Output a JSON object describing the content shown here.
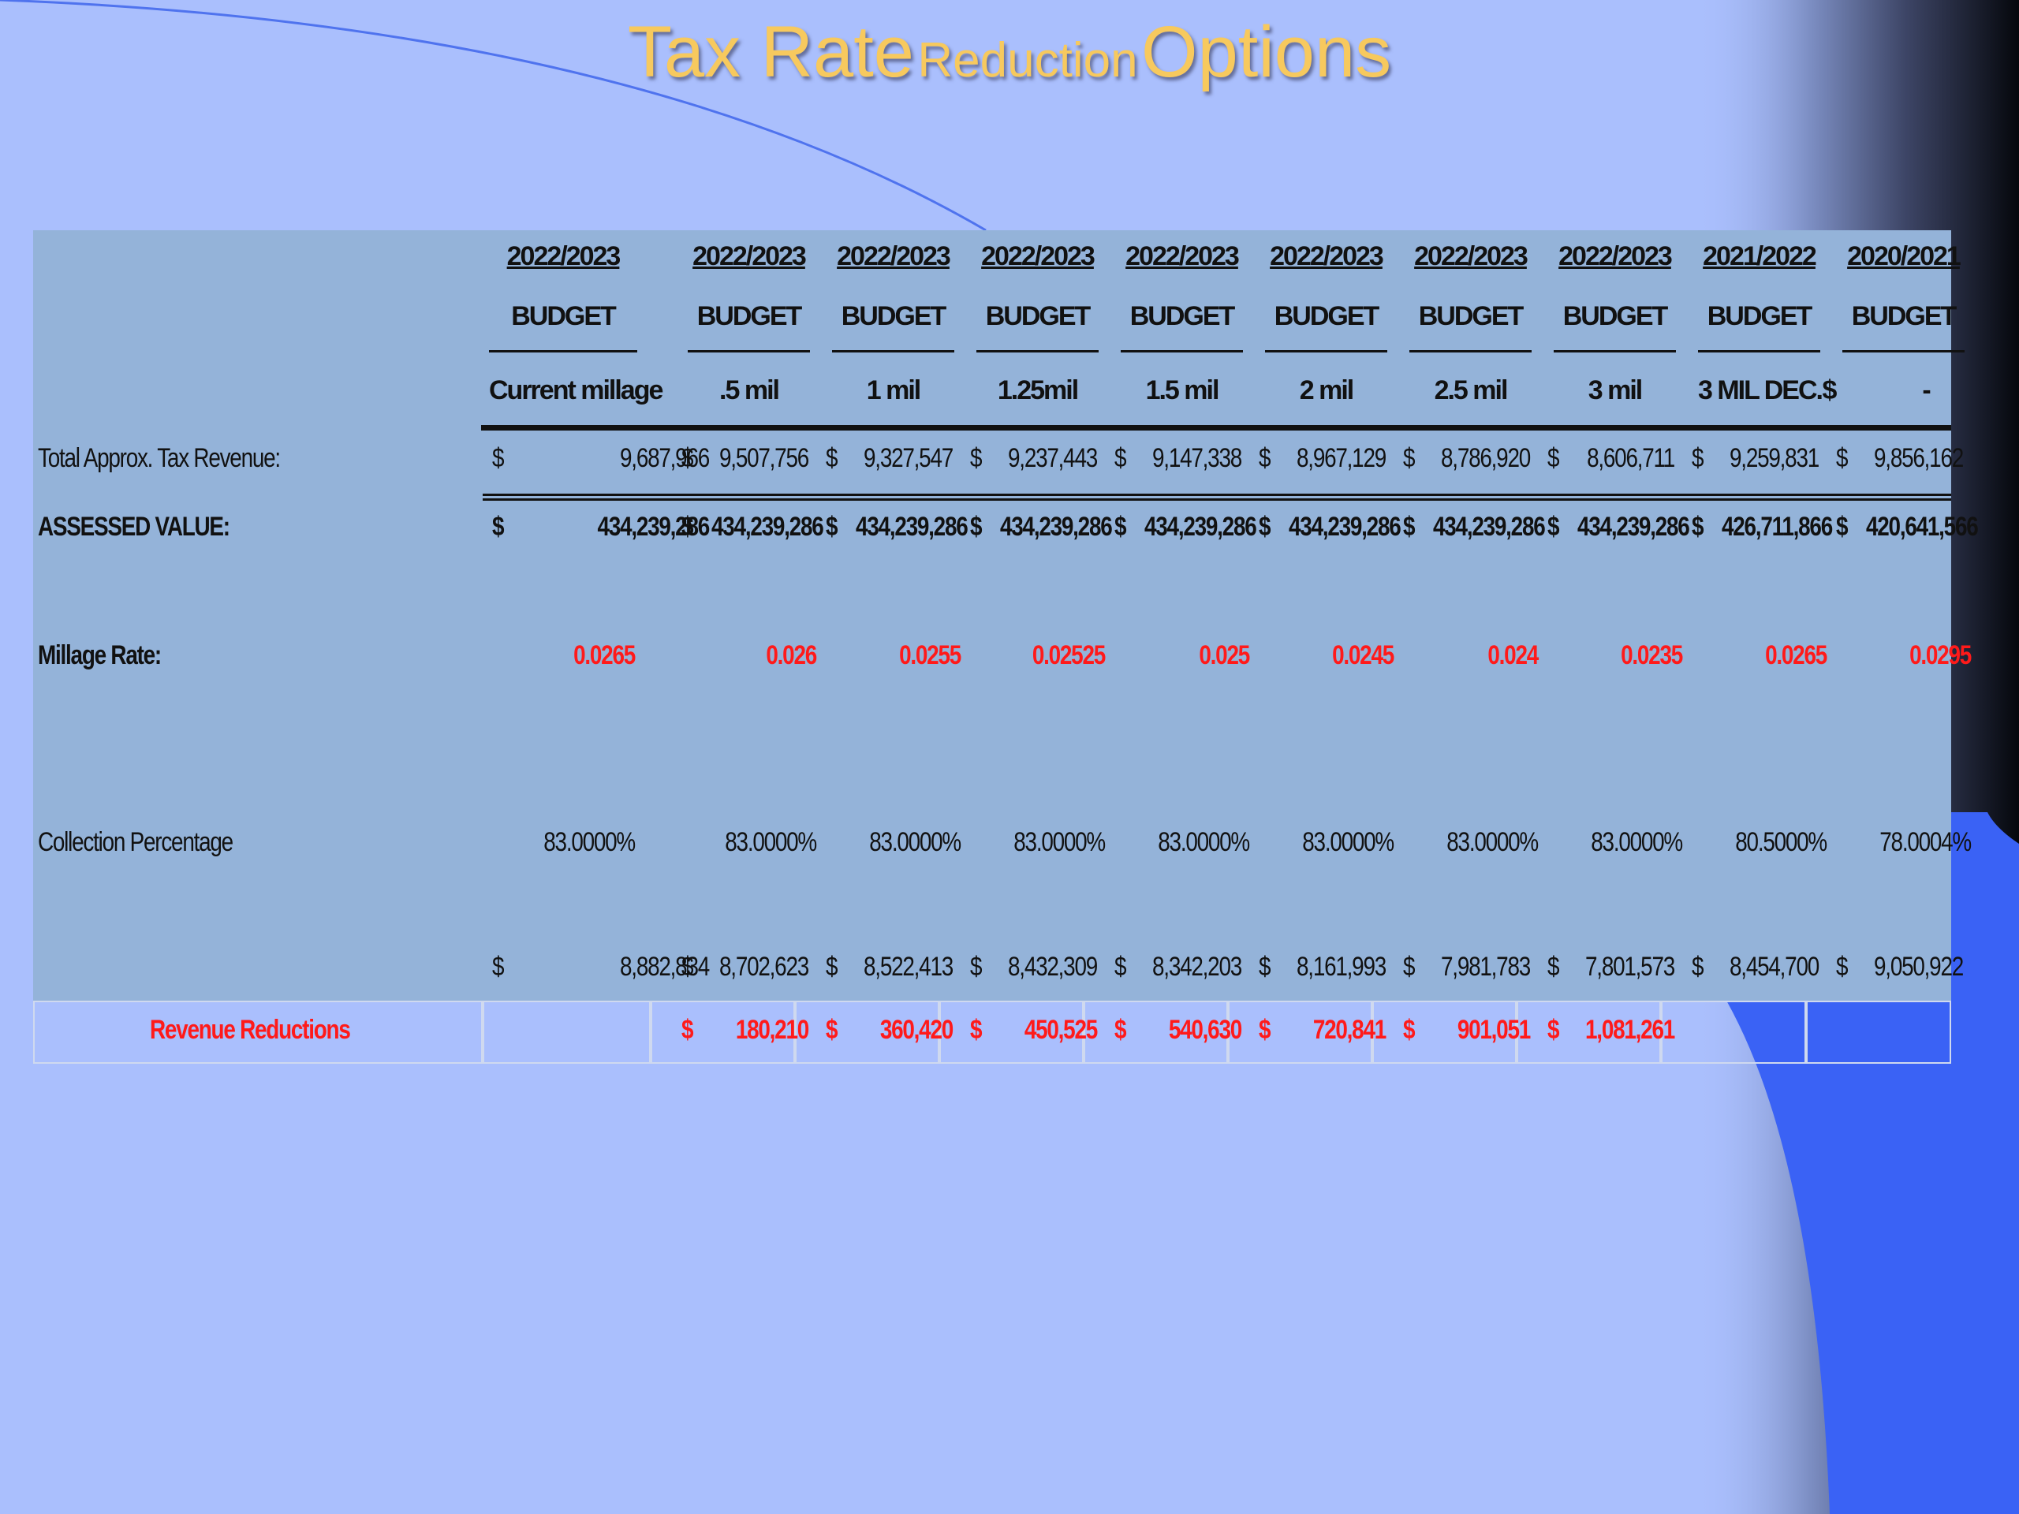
{
  "title": {
    "part1": "Tax Rate",
    "part2": "Reduction",
    "part3": "Options"
  },
  "columns": [
    {
      "year": "2022/2023",
      "type": "BUDGET",
      "option": "Current millage"
    },
    {
      "year": "2022/2023",
      "type": "BUDGET",
      "option": ".5 mil"
    },
    {
      "year": "2022/2023",
      "type": "BUDGET",
      "option": "1 mil"
    },
    {
      "year": "2022/2023",
      "type": "BUDGET",
      "option": "1.25mil"
    },
    {
      "year": "2022/2023",
      "type": "BUDGET",
      "option": "1.5 mil"
    },
    {
      "year": "2022/2023",
      "type": "BUDGET",
      "option": "2 mil"
    },
    {
      "year": "2022/2023",
      "type": "BUDGET",
      "option": "2.5 mil"
    },
    {
      "year": "2022/2023",
      "type": "BUDGET",
      "option": "3 mil"
    },
    {
      "year": "2021/2022",
      "type": "BUDGET",
      "option": "3 MIL DEC."
    },
    {
      "year": "2020/2021",
      "type": "BUDGET",
      "option": "$",
      "option_value": "-"
    }
  ],
  "rows": {
    "revenue": {
      "label": "Total Approx. Tax Revenue:",
      "currency": "$",
      "values": [
        "9,687,966",
        "9,507,756",
        "9,327,547",
        "9,237,443",
        "9,147,338",
        "8,967,129",
        "8,786,920",
        "8,606,711",
        "9,259,831",
        "9,856,162"
      ]
    },
    "assessed": {
      "label": "ASSESSED VALUE:",
      "currency": "$",
      "values": [
        "434,239,286",
        "434,239,286",
        "434,239,286",
        "434,239,286",
        "434,239,286",
        "434,239,286",
        "434,239,286",
        "434,239,286",
        "426,711,866",
        "420,641,566"
      ]
    },
    "millage": {
      "label": "Millage Rate:",
      "values": [
        "0.0265",
        "0.026",
        "0.0255",
        "0.02525",
        "0.025",
        "0.0245",
        "0.024",
        "0.0235",
        "0.0265",
        "0.0295"
      ]
    },
    "collection": {
      "label": "Collection Percentage",
      "values": [
        "83.0000%",
        "83.0000%",
        "83.0000%",
        "83.0000%",
        "83.0000%",
        "83.0000%",
        "83.0000%",
        "83.0000%",
        "80.5000%",
        "78.0004%"
      ]
    },
    "net": {
      "label": "",
      "currency": "$",
      "values": [
        "8,882,834",
        "8,702,623",
        "8,522,413",
        "8,432,309",
        "8,342,203",
        "8,161,993",
        "7,981,783",
        "7,801,573",
        "8,454,700",
        "9,050,922"
      ]
    },
    "reductions": {
      "label": "Revenue Reductions",
      "currency": "$",
      "values": [
        "",
        "180,210",
        "360,420",
        "450,525",
        "540,630",
        "720,841",
        "901,051",
        "1,081,261",
        "",
        ""
      ]
    }
  },
  "colors": {
    "background": "#aabffd",
    "sheet": "#94b3d9",
    "title": "#f7c95e",
    "accent_red": "#ff1a1a",
    "accent_blue": "#3a62f5"
  }
}
